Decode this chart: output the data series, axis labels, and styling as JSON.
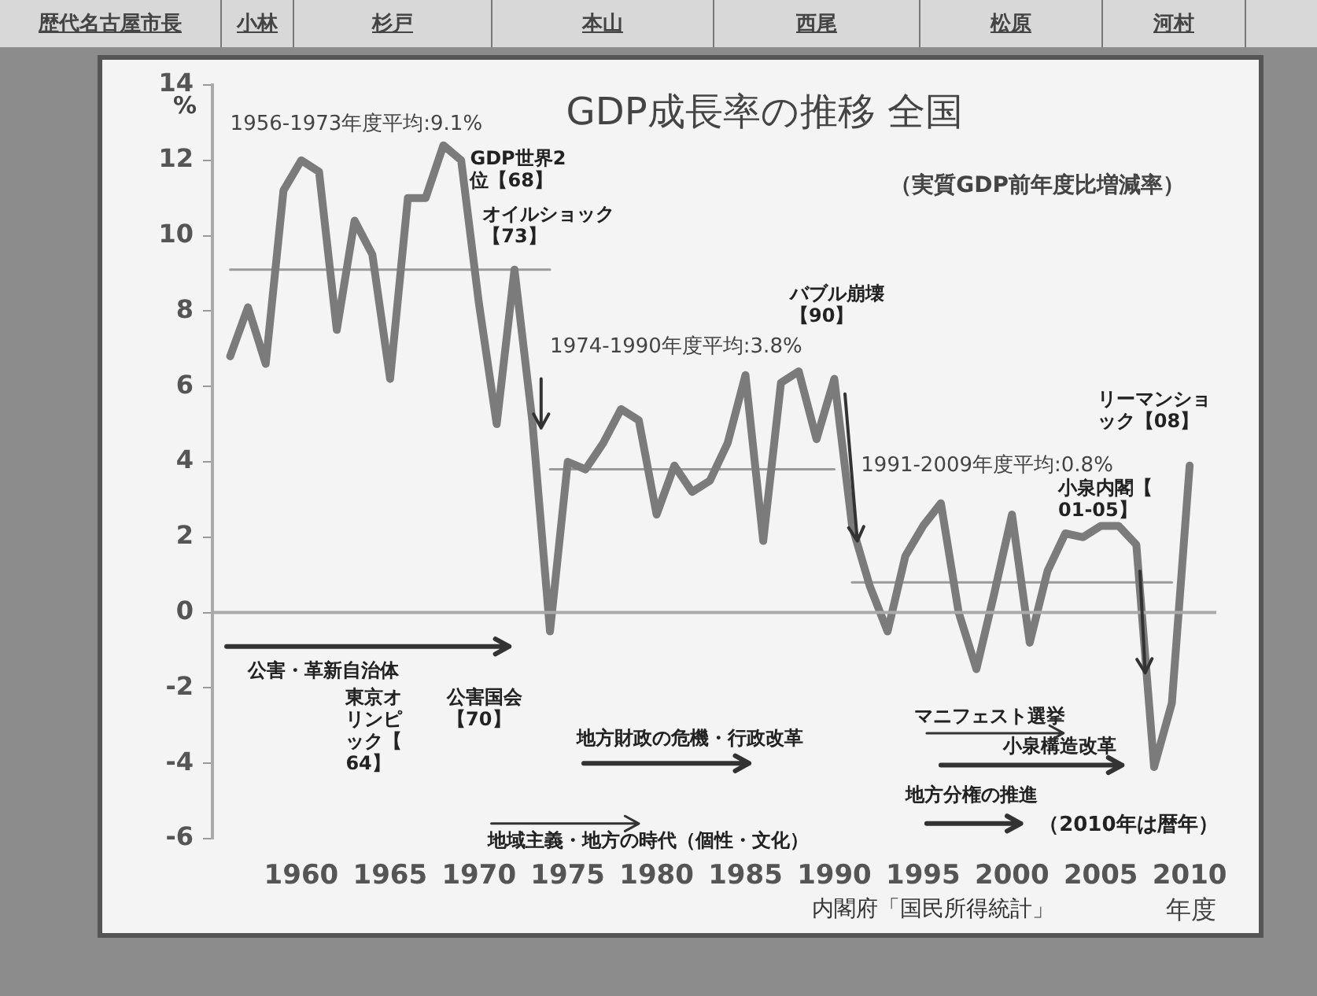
{
  "chart_data": {
    "type": "line",
    "title": "GDP成長率の推移 全国",
    "subtitle": "（実質GDP前年度比増減率）",
    "ylabel": "%",
    "xlabel": "年度",
    "x": [
      1956,
      1957,
      1958,
      1959,
      1960,
      1961,
      1962,
      1963,
      1964,
      1965,
      1966,
      1967,
      1968,
      1969,
      1970,
      1971,
      1972,
      1973,
      1974,
      1975,
      1976,
      1977,
      1978,
      1979,
      1980,
      1981,
      1982,
      1983,
      1984,
      1985,
      1986,
      1987,
      1988,
      1989,
      1990,
      1991,
      1992,
      1993,
      1994,
      1995,
      1996,
      1997,
      1998,
      1999,
      2000,
      2001,
      2002,
      2003,
      2004,
      2005,
      2006,
      2007,
      2008,
      2009,
      2010
    ],
    "series": [
      {
        "color": "#7b7b7b",
        "values": [
          6.8,
          8.1,
          6.6,
          11.2,
          12.0,
          11.7,
          7.5,
          10.4,
          9.5,
          6.2,
          11.0,
          11.0,
          12.4,
          12.0,
          8.2,
          5.0,
          9.1,
          5.1,
          -0.5,
          4.0,
          3.8,
          4.5,
          5.4,
          5.1,
          2.6,
          3.9,
          3.2,
          3.5,
          4.5,
          6.3,
          1.9,
          6.1,
          6.4,
          4.6,
          6.2,
          2.3,
          0.7,
          -0.5,
          1.5,
          2.3,
          2.9,
          0.0,
          -1.5,
          0.5,
          2.6,
          -0.8,
          1.1,
          2.1,
          2.0,
          2.3,
          2.3,
          1.8,
          -4.1,
          -2.4,
          3.9
        ]
      },
      {
        "color": "#9a9a9a",
        "x": [
          1956,
          1974
        ],
        "values": [
          9.1,
          9.1
        ]
      },
      {
        "color": "#9a9a9a",
        "x": [
          1974,
          1990
        ],
        "values": [
          3.8,
          3.8
        ]
      },
      {
        "color": "#9a9a9a",
        "x": [
          1991,
          2009
        ],
        "values": [
          0.8,
          0.8
        ]
      }
    ],
    "ref_lines": [
      {
        "axis": "y",
        "value": 0,
        "color": "#aaaaaa"
      }
    ],
    "xlim": [
      1955,
      2011.5
    ],
    "xticks": [
      1960,
      1965,
      1970,
      1975,
      1980,
      1985,
      1990,
      1995,
      2000,
      2005,
      2010
    ],
    "ylim": [
      -6,
      14
    ],
    "yticks": [
      -6,
      -4,
      -2,
      0,
      2,
      4,
      6,
      8,
      10,
      12,
      14
    ],
    "grid": false,
    "legend": false,
    "marker": "none",
    "line_style": "solid",
    "annotations": [
      "1956-1973年度平均:9.1%",
      "1974-1990年度平均:3.8%",
      "1991-2009年度平均:0.8%",
      "GDP世界2位【68】",
      "オイルショック【73】",
      "バブル崩壊【90】",
      "リーマンショック【08】",
      "小泉内閣【01-05】",
      "公害・革新自治体",
      "東京オリンピック【64】",
      "公害国会【70】",
      "地方財政の危機・行政改革",
      "地域主義・地方の時代（個性・文化）",
      "マニフェスト選挙",
      "小泉構造改革",
      "地方分権の推進",
      "（2010年は暦年）",
      "歴代名古屋市長",
      "小林",
      "杉戸",
      "本山",
      "西尾",
      "松原",
      "河村",
      "内閣府「国民所得統計」"
    ]
  }
}
